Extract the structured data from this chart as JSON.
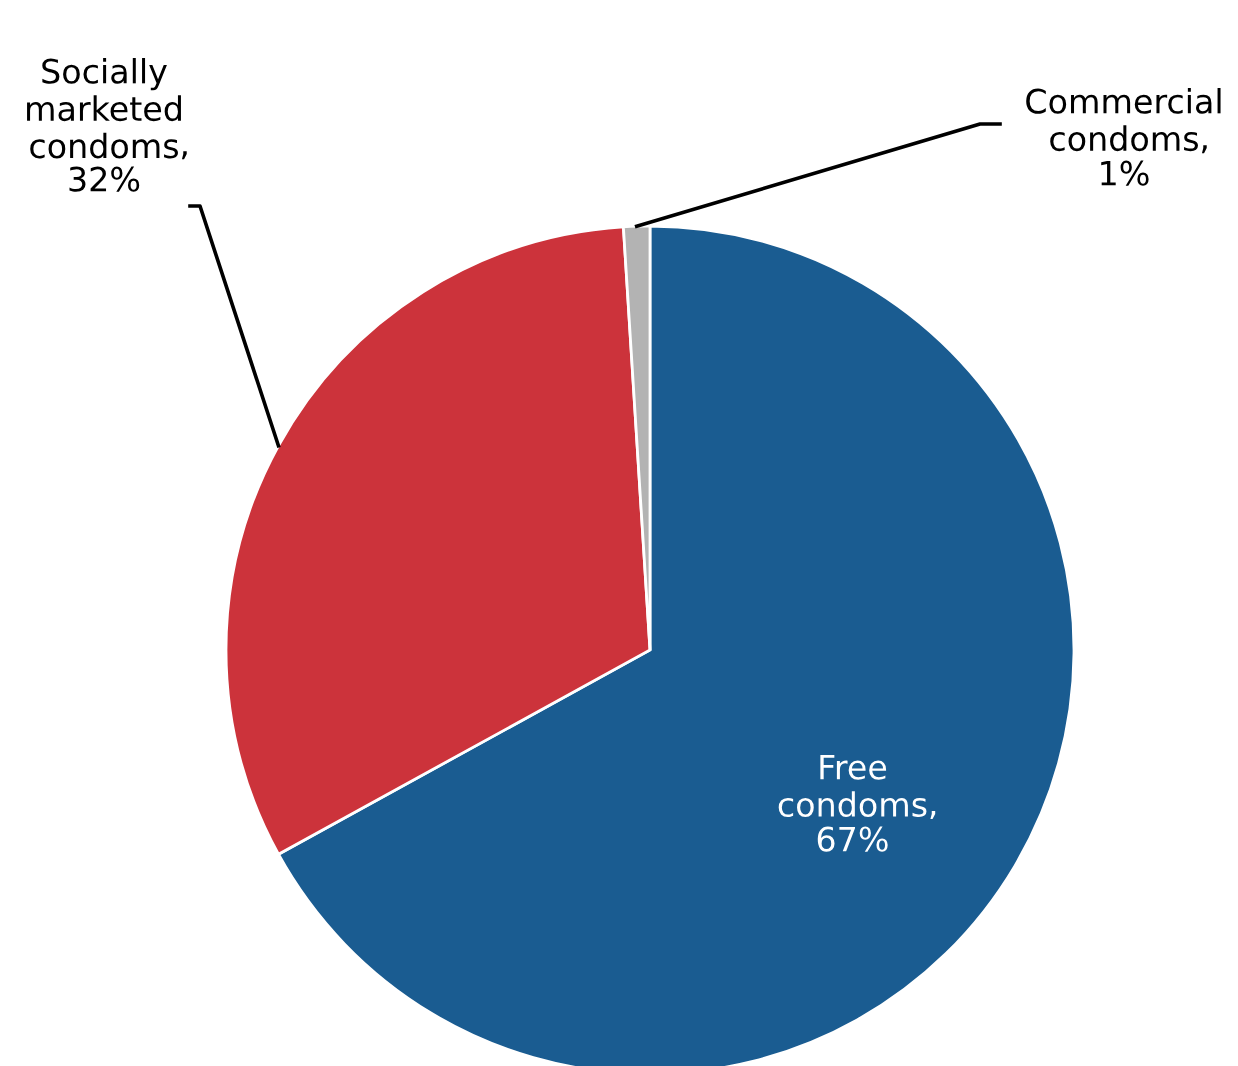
{
  "chart_data": {
    "type": "pie",
    "categories": [
      "Free condoms",
      "Socially marketed condoms",
      "Commercial condoms"
    ],
    "values": [
      67,
      32,
      1
    ],
    "colors": [
      "#1a5c91",
      "#cc333b",
      "#b3b3b3"
    ],
    "value_labels": [
      ",\n67%",
      ",\n32%",
      ",\n1%"
    ]
  }
}
